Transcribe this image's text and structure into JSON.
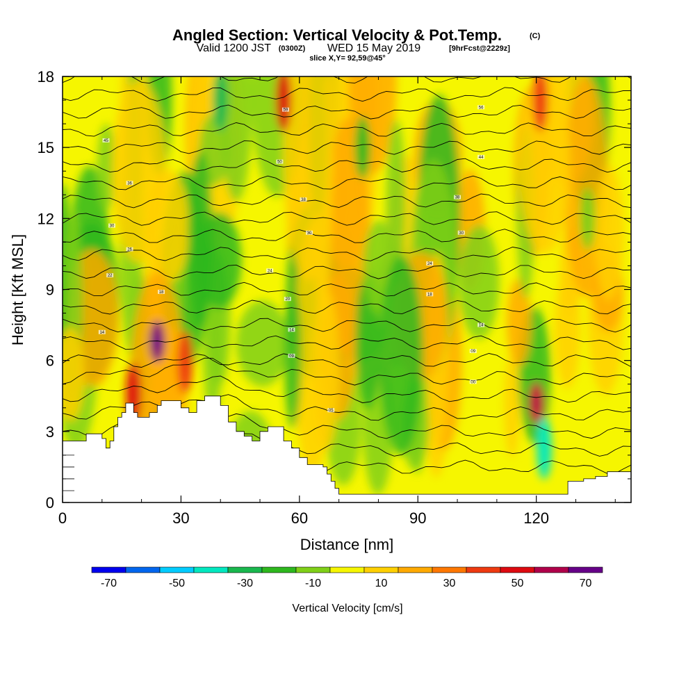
{
  "title": {
    "main": "Angled Section: Vertical Velocity & Pot.Temp.",
    "main_unit": "(C)",
    "sub_valid": "Valid 1200 JST",
    "sub_utc": "(0300Z)",
    "sub_date": "WED 15 May 2019",
    "sub_fcst": "[9hrFcst@2229z]",
    "slice": "slice X,Y= 92,59@45°"
  },
  "chart_data": {
    "type": "heatmap",
    "xlabel": "Distance [nm]",
    "ylabel": "Height [Kft MSL]",
    "xlim": [
      0,
      144
    ],
    "ylim": [
      0,
      18
    ],
    "x_ticks": [
      0,
      30,
      60,
      90,
      120
    ],
    "y_ticks": [
      0,
      3,
      6,
      9,
      12,
      15,
      18
    ],
    "x_tick_labels": [
      "0",
      "30",
      "60",
      "90",
      "120"
    ],
    "y_tick_labels": [
      "0",
      "3",
      "6",
      "9",
      "12",
      "15",
      "18"
    ],
    "colorbar": {
      "title": "Vertical Velocity [cm/s]",
      "bins": [
        -75,
        -65,
        -55,
        -45,
        -35,
        -25,
        -15,
        -5,
        5,
        15,
        25,
        35,
        45,
        55,
        65,
        75
      ],
      "colors": [
        "#0000ee",
        "#0066ee",
        "#00ccff",
        "#00e8c0",
        "#19b84e",
        "#2eb81e",
        "#80d018",
        "#f6f600",
        "#ffd000",
        "#ffaa00",
        "#ff7800",
        "#ee3a10",
        "#dd0a10",
        "#b0004a",
        "#660088"
      ],
      "tick_values": [
        -70,
        -50,
        -30,
        -10,
        10,
        30,
        50,
        70
      ],
      "tick_labels": [
        "-70",
        "-50",
        "-30",
        "-10",
        "10",
        "30",
        "50",
        "70"
      ]
    },
    "vertical_velocity_features": [
      {
        "x": 24,
        "y": 6.8,
        "value": 80
      },
      {
        "x": 18,
        "y": 4.6,
        "value": 45
      },
      {
        "x": 31,
        "y": 5.9,
        "value": 40
      },
      {
        "x": 56,
        "y": 17.0,
        "value": 45
      },
      {
        "x": 120,
        "y": 4.2,
        "value": 55
      },
      {
        "x": 121,
        "y": 17.0,
        "value": 40
      },
      {
        "x": 76,
        "y": 15.0,
        "value": -25
      },
      {
        "x": 40,
        "y": 17.0,
        "value": -35
      },
      {
        "x": 122,
        "y": 2.3,
        "value": -40
      },
      {
        "x": 133,
        "y": 12.0,
        "value": -15
      }
    ],
    "terrain_top_kft": {
      "x": [
        0,
        3,
        6,
        9,
        10,
        11,
        12,
        13,
        14,
        15,
        16,
        17,
        18,
        19,
        20,
        22,
        24,
        25,
        26,
        28,
        30,
        32,
        34,
        36,
        38,
        40,
        42,
        44,
        46,
        48,
        50,
        52,
        54,
        56,
        58,
        60,
        62,
        64,
        66,
        67,
        68,
        69,
        70,
        72,
        80,
        90,
        100,
        110,
        115,
        118,
        122,
        126,
        128,
        132,
        135,
        138,
        140,
        144
      ],
      "y": [
        2.6,
        2.6,
        2.9,
        2.9,
        2.7,
        2.3,
        2.6,
        3.2,
        3.6,
        3.8,
        4.2,
        4.2,
        3.8,
        3.6,
        3.6,
        3.8,
        4.1,
        4.3,
        4.3,
        4.3,
        4.0,
        3.8,
        4.3,
        4.5,
        4.5,
        4.1,
        3.4,
        3.0,
        2.8,
        2.6,
        3.0,
        3.2,
        3.2,
        2.6,
        2.3,
        1.9,
        1.6,
        1.6,
        1.5,
        1.2,
        0.9,
        0.6,
        0.35,
        0.35,
        0.35,
        0.35,
        0.35,
        0.35,
        0.35,
        0.35,
        0.35,
        0.35,
        0.9,
        1.0,
        1.1,
        1.3,
        1.3,
        1.3
      ]
    },
    "pot_temp_contours": {
      "level_spacing_kft": 0.75,
      "labels": [
        {
          "x": 11,
          "y": 15.3,
          "text": "45"
        },
        {
          "x": 17,
          "y": 13.5,
          "text": "36"
        },
        {
          "x": 12.5,
          "y": 11.7,
          "text": "30"
        },
        {
          "x": 17,
          "y": 10.7,
          "text": "26"
        },
        {
          "x": 12,
          "y": 9.6,
          "text": "22"
        },
        {
          "x": 25,
          "y": 8.9,
          "text": "18"
        },
        {
          "x": 10,
          "y": 7.2,
          "text": "14"
        },
        {
          "x": 56.5,
          "y": 16.6,
          "text": "59"
        },
        {
          "x": 55,
          "y": 14.4,
          "text": "50"
        },
        {
          "x": 61,
          "y": 12.8,
          "text": "38"
        },
        {
          "x": 62.5,
          "y": 11.4,
          "text": "30"
        },
        {
          "x": 52.5,
          "y": 9.8,
          "text": "24"
        },
        {
          "x": 57,
          "y": 8.6,
          "text": "20"
        },
        {
          "x": 58,
          "y": 7.3,
          "text": "14"
        },
        {
          "x": 58,
          "y": 6.2,
          "text": "09"
        },
        {
          "x": 68,
          "y": 3.9,
          "text": "05"
        },
        {
          "x": 106,
          "y": 16.7,
          "text": "56"
        },
        {
          "x": 106,
          "y": 14.6,
          "text": "44"
        },
        {
          "x": 100,
          "y": 12.9,
          "text": "38"
        },
        {
          "x": 101,
          "y": 11.4,
          "text": "30"
        },
        {
          "x": 93,
          "y": 10.1,
          "text": "24"
        },
        {
          "x": 93,
          "y": 8.8,
          "text": "18"
        },
        {
          "x": 106,
          "y": 7.5,
          "text": "14"
        },
        {
          "x": 104,
          "y": 6.4,
          "text": "09"
        },
        {
          "x": 104,
          "y": 5.1,
          "text": "00"
        }
      ]
    }
  },
  "colors": {
    "frame": "#000000",
    "background": "#ffffff",
    "terrain": "#ffffff"
  }
}
